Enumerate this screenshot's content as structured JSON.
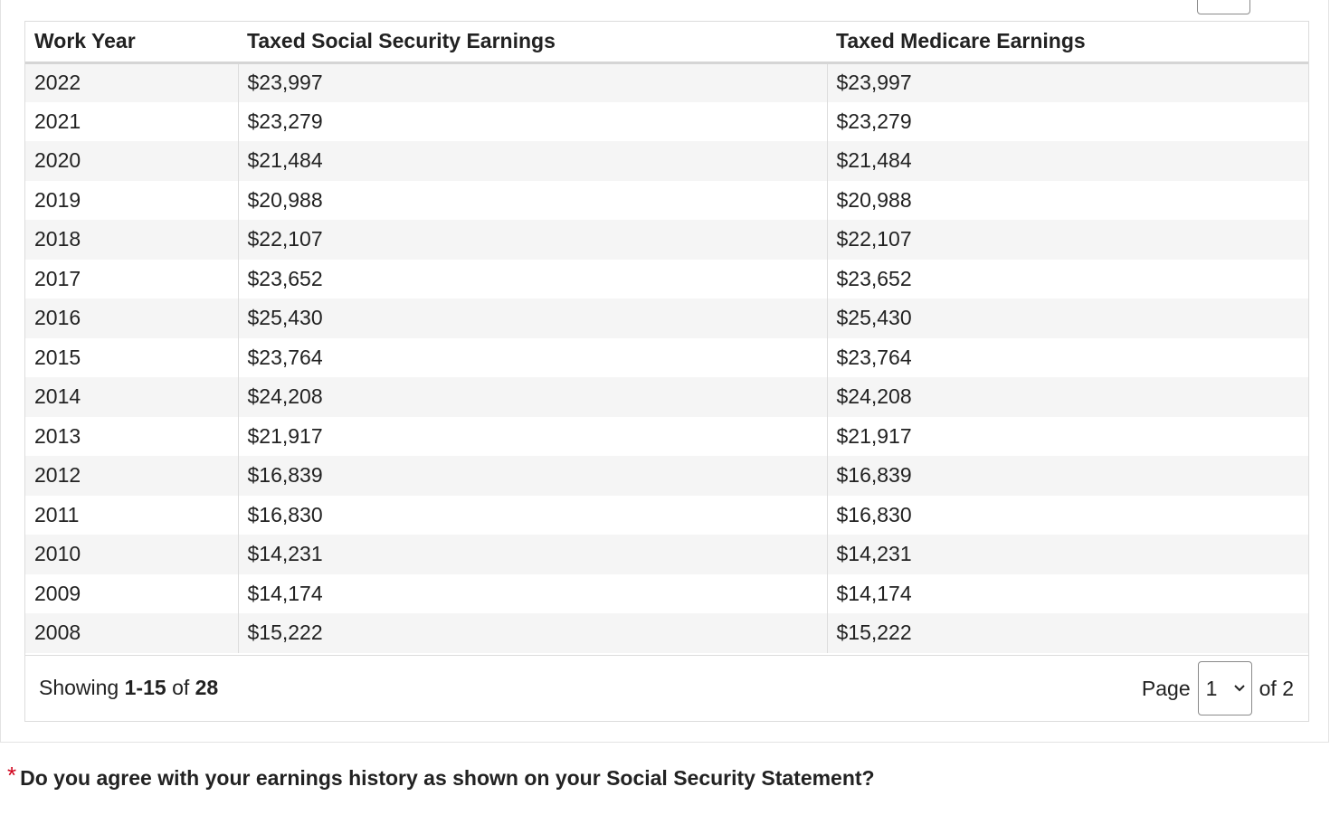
{
  "table": {
    "headers": [
      "Work Year",
      "Taxed Social Security Earnings",
      "Taxed Medicare Earnings"
    ],
    "rows": [
      [
        "2022",
        "$23,997",
        "$23,997"
      ],
      [
        "2021",
        "$23,279",
        "$23,279"
      ],
      [
        "2020",
        "$21,484",
        "$21,484"
      ],
      [
        "2019",
        "$20,988",
        "$20,988"
      ],
      [
        "2018",
        "$22,107",
        "$22,107"
      ],
      [
        "2017",
        "$23,652",
        "$23,652"
      ],
      [
        "2016",
        "$25,430",
        "$25,430"
      ],
      [
        "2015",
        "$23,764",
        "$23,764"
      ],
      [
        "2014",
        "$24,208",
        "$24,208"
      ],
      [
        "2013",
        "$21,917",
        "$21,917"
      ],
      [
        "2012",
        "$16,839",
        "$16,839"
      ],
      [
        "2011",
        "$16,830",
        "$16,830"
      ],
      [
        "2010",
        "$14,231",
        "$14,231"
      ],
      [
        "2009",
        "$14,174",
        "$14,174"
      ],
      [
        "2008",
        "$15,222",
        "$15,222"
      ]
    ]
  },
  "footer": {
    "showing_prefix": "Showing",
    "range": "1-15",
    "of_word": "of",
    "total": "28",
    "page_label": "Page",
    "page_selected": "1",
    "page_of": "of 2"
  },
  "question": {
    "required_mark": "*",
    "text": "Do you agree with your earnings history as shown on your Social Security Statement?"
  },
  "colors": {
    "required": "#d0021b",
    "row_stripe": "#f5f5f5"
  },
  "icons": {
    "page_select_arrow": "chevron-down-icon"
  }
}
